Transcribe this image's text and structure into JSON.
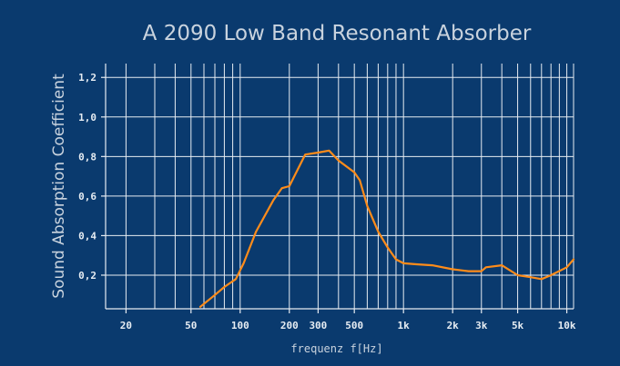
{
  "chart_data": {
    "type": "line",
    "title": "A 2090 Low Band Resonant Absorber",
    "xlabel": "frequenz f[Hz]",
    "ylabel": "Sound Absorption Coefficient",
    "x_scale": "log",
    "xlim": [
      15,
      11000
    ],
    "ylim": [
      0.03,
      1.27
    ],
    "grid": true,
    "x_major_ticks": [
      {
        "value": 20,
        "label": "20"
      },
      {
        "value": 50,
        "label": "50"
      },
      {
        "value": 100,
        "label": "100"
      },
      {
        "value": 200,
        "label": "200"
      },
      {
        "value": 300,
        "label": "300"
      },
      {
        "value": 500,
        "label": "500"
      },
      {
        "value": 1000,
        "label": "1k"
      },
      {
        "value": 2000,
        "label": "2k"
      },
      {
        "value": 3000,
        "label": "3k"
      },
      {
        "value": 5000,
        "label": "5k"
      },
      {
        "value": 10000,
        "label": "10k"
      }
    ],
    "x_gridlines": [
      20,
      30,
      40,
      50,
      60,
      70,
      80,
      90,
      100,
      200,
      300,
      400,
      500,
      600,
      700,
      800,
      900,
      1000,
      2000,
      3000,
      4000,
      5000,
      6000,
      7000,
      8000,
      9000,
      10000
    ],
    "y_ticks": [
      {
        "value": 0.2,
        "label": "0,2"
      },
      {
        "value": 0.4,
        "label": "0,4"
      },
      {
        "value": 0.6,
        "label": "0,6"
      },
      {
        "value": 0.8,
        "label": "0,8"
      },
      {
        "value": 1.0,
        "label": "1,0"
      },
      {
        "value": 1.2,
        "label": "1,2"
      }
    ],
    "series": [
      {
        "color": "#ff8c1a",
        "x": [
          57,
          70,
          80,
          94,
          105,
          125,
          160,
          180,
          200,
          250,
          300,
          350,
          400,
          500,
          540,
          600,
          700,
          800,
          900,
          1000,
          1200,
          1500,
          2000,
          2500,
          3000,
          3200,
          4000,
          5000,
          6000,
          7000,
          8000,
          10000,
          11000
        ],
        "y": [
          0.04,
          0.1,
          0.14,
          0.18,
          0.26,
          0.42,
          0.58,
          0.64,
          0.65,
          0.81,
          0.82,
          0.83,
          0.78,
          0.72,
          0.68,
          0.55,
          0.42,
          0.34,
          0.28,
          0.26,
          0.255,
          0.25,
          0.23,
          0.22,
          0.22,
          0.24,
          0.25,
          0.2,
          0.19,
          0.18,
          0.2,
          0.24,
          0.28
        ]
      }
    ]
  }
}
